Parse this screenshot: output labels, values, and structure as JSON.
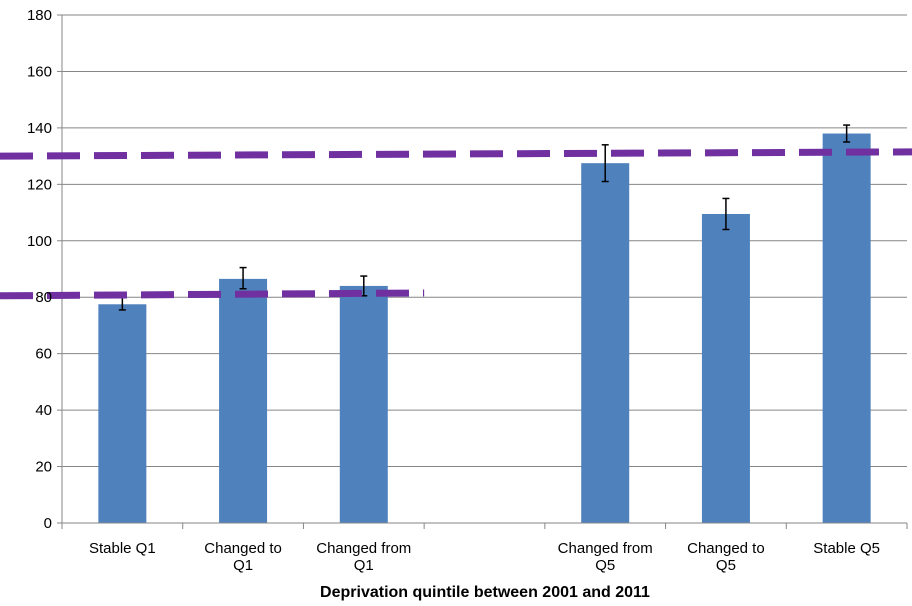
{
  "chart_data": {
    "type": "bar",
    "title": "",
    "xlabel": "Deprivation quintile between 2001 and 2011",
    "ylabel": "",
    "ylim": [
      0,
      180
    ],
    "yticks": [
      "0",
      "20",
      "40",
      "60",
      "80",
      "100",
      "120",
      "140",
      "160",
      "180"
    ],
    "grid": true,
    "legend": "none",
    "bar_color": "#4f81bd",
    "reference_line_color": "#7030a0",
    "categories": [
      {
        "label_lines": [
          "Stable Q1"
        ],
        "value": 77.5,
        "err_low": 75.5,
        "err_high": 80
      },
      {
        "label_lines": [
          "Changed to",
          "Q1"
        ],
        "value": 86.5,
        "err_low": 83,
        "err_high": 90.5
      },
      {
        "label_lines": [
          "Changed from",
          "Q1"
        ],
        "value": 84,
        "err_low": 80.5,
        "err_high": 87.5
      },
      {
        "label_lines": [],
        "value": null,
        "err_low": null,
        "err_high": null
      },
      {
        "label_lines": [
          "Changed from",
          "Q5"
        ],
        "value": 127.5,
        "err_low": 121,
        "err_high": 134
      },
      {
        "label_lines": [
          "Changed to",
          "Q5"
        ],
        "value": 109.5,
        "err_low": 104,
        "err_high": 115
      },
      {
        "label_lines": [
          "Stable Q5"
        ],
        "value": 138,
        "err_low": 135,
        "err_high": 141
      }
    ],
    "reference_lines": [
      {
        "value_start": 80.5,
        "value_end": 81.5,
        "category_span": "Stable Q1 to Changed from Q1"
      },
      {
        "value_start": 130,
        "value_end": 131.5,
        "category_span": "all"
      }
    ]
  }
}
